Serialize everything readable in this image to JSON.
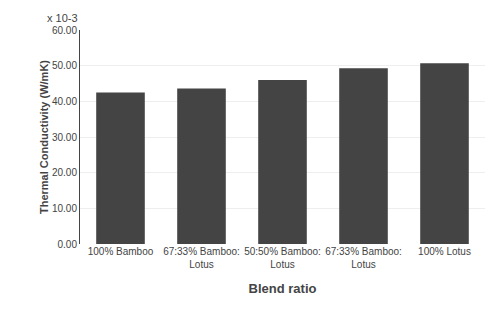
{
  "chart_data": {
    "type": "bar",
    "categories": [
      "100% Bamboo",
      "67:33% Bamboo:\nLotus",
      "50:50% Bamboo:\nLotus",
      "67:33% Bamboo:\nLotus",
      "100% Lotus"
    ],
    "values": [
      42.5,
      43.6,
      46.0,
      49.3,
      50.7
    ],
    "color": "#444444",
    "xlabel": "Blend ratio",
    "ylabel": "Thermal Conductivity (W/mK)",
    "annotations": [
      "x 10-3"
    ],
    "ylim": [
      0,
      60
    ],
    "yticks": [
      {
        "value": 0,
        "label": "0.00"
      },
      {
        "value": 10,
        "label": "10.00"
      },
      {
        "value": 20,
        "label": "20.00"
      },
      {
        "value": 30,
        "label": "30.00"
      },
      {
        "value": 40,
        "label": "40.00"
      },
      {
        "value": 50,
        "label": "50.00"
      },
      {
        "value": 60,
        "label": "60.00"
      }
    ],
    "grid": true
  }
}
